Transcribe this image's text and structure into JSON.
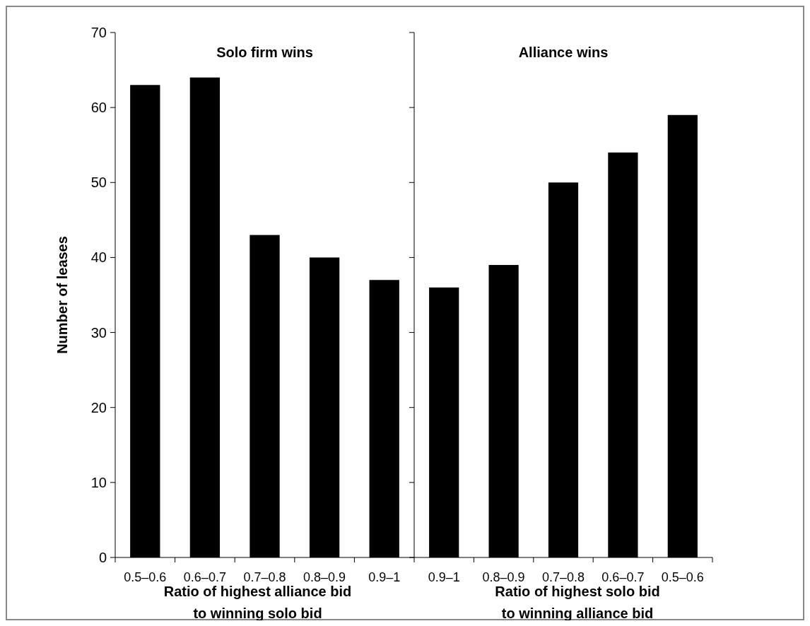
{
  "chart_data": [
    {
      "type": "bar",
      "title": "Solo firm wins",
      "xlabel": "Ratio of highest alliance bid\nto winning solo bid",
      "ylabel": "Number of leases",
      "categories": [
        "0.5–0.6",
        "0.6–0.7",
        "0.7–0.8",
        "0.8–0.9",
        "0.9–1"
      ],
      "values": [
        63,
        64,
        43,
        40,
        37
      ],
      "color": "#000000",
      "ylim": [
        0,
        70
      ],
      "yticks": [
        0,
        10,
        20,
        30,
        40,
        50,
        60,
        70
      ],
      "grid": false
    },
    {
      "type": "bar",
      "title": "Alliance wins",
      "xlabel": "Ratio of highest solo bid\nto winning alliance bid",
      "categories": [
        "0.9–1",
        "0.8–0.9",
        "0.7–0.8",
        "0.6–0.7",
        "0.5–0.6"
      ],
      "values": [
        36,
        39,
        50,
        54,
        59
      ],
      "color": "#000000",
      "ylim": [
        0,
        70
      ],
      "yticks": [
        0,
        10,
        20,
        30,
        40,
        50,
        60,
        70
      ],
      "grid": false,
      "tick_labels": "x"
    }
  ]
}
